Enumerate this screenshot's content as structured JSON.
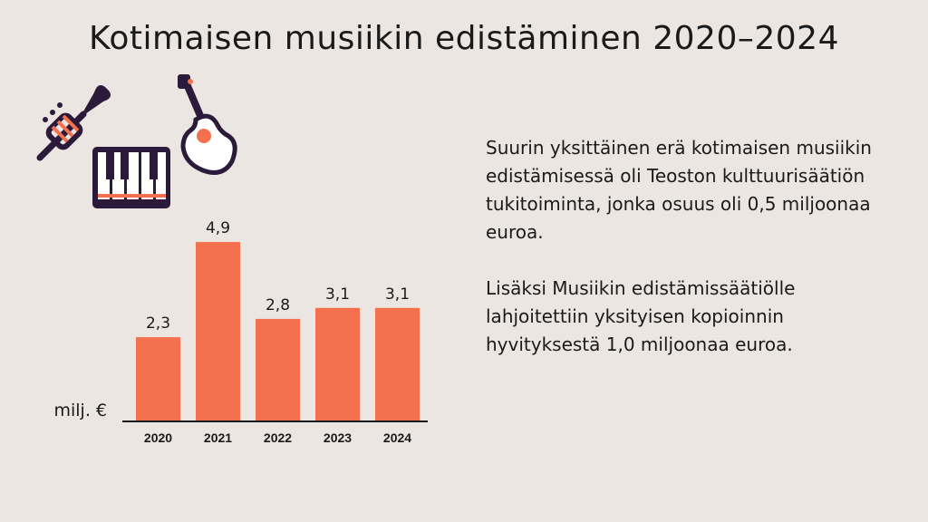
{
  "title": "Kotimaisen musiikin edistäminen 2020–2024",
  "colors": {
    "bar": "#f5704f",
    "icon_dark": "#2b1a3a",
    "icon_accent": "#f5704f",
    "background": "#ebe6e2"
  },
  "icons": [
    "trumpet-icon",
    "piano-icon",
    "guitar-icon"
  ],
  "text": {
    "paragraph_1": "Suurin yksittäinen erä kotimaisen musiikin edistämisessä oli Teoston kulttuurisäätiön tukitoiminta, jonka osuus oli 0,5 miljoonaa euroa.",
    "paragraph_2": "Lisäksi Musiikin edistämissäätiölle lahjoitettiin yksityisen kopioinnin hyvityksestä 1,0 miljoonaa euroa."
  },
  "chart_data": {
    "type": "bar",
    "categories": [
      "2020",
      "2021",
      "2022",
      "2023",
      "2024"
    ],
    "values": [
      2.3,
      4.9,
      2.8,
      3.1,
      3.1
    ],
    "value_labels": [
      "2,3",
      "4,9",
      "2,8",
      "3,1",
      "3,1"
    ],
    "ylabel": "milj. €",
    "ylim": [
      0,
      5
    ],
    "grid": false,
    "legend": "none"
  }
}
